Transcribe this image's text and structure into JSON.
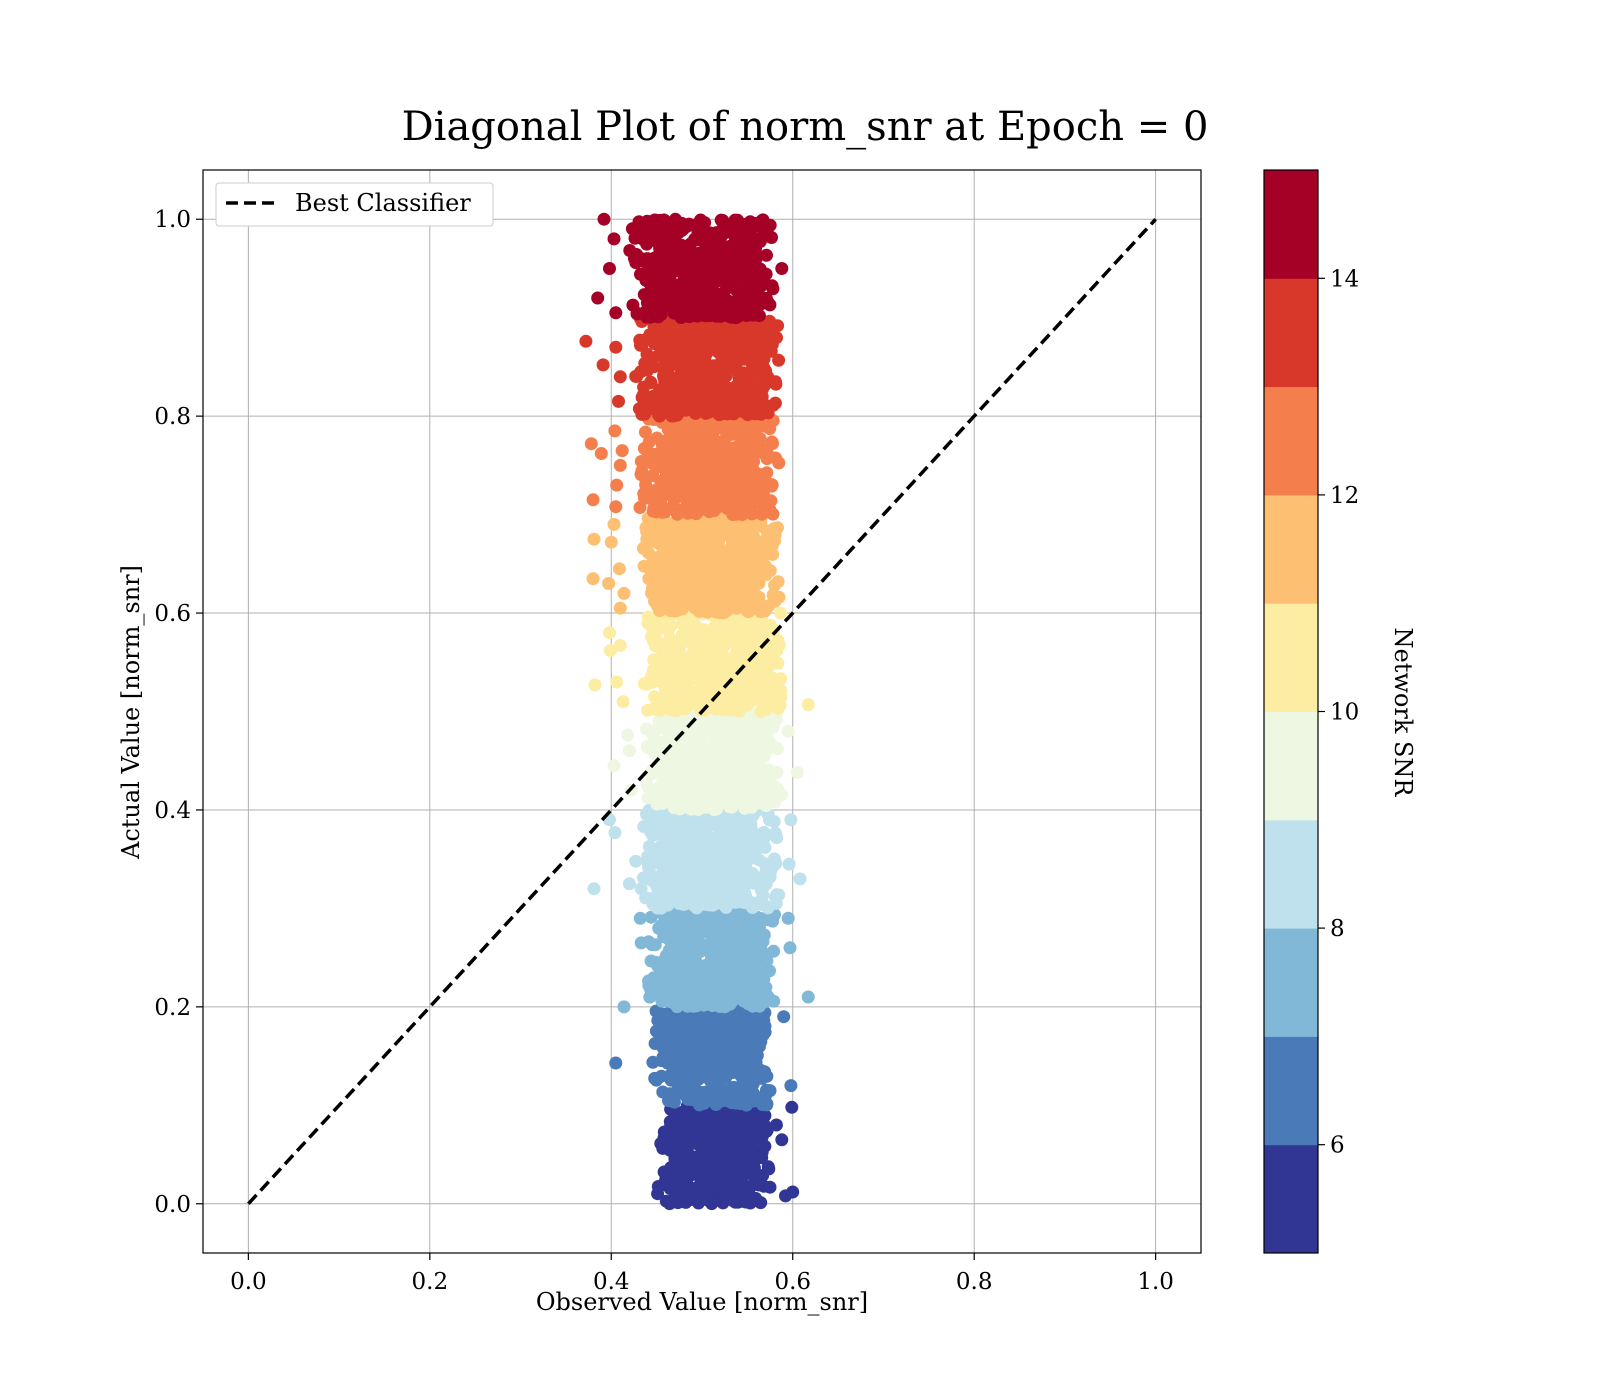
{
  "chart_data": {
    "type": "scatter",
    "title": "Diagonal Plot of norm_snr at Epoch = 0",
    "xlabel": "Observed Value [norm_snr]",
    "ylabel": "Actual Value [norm_snr]",
    "xlim": [
      -0.05,
      1.05
    ],
    "ylim": [
      -0.05,
      1.05
    ],
    "xticks": [
      "0.0",
      "0.2",
      "0.4",
      "0.6",
      "0.8",
      "1.0"
    ],
    "yticks": [
      "0.0",
      "0.2",
      "0.4",
      "0.6",
      "0.8",
      "1.0"
    ],
    "grid": true,
    "legend": {
      "placement": "top-left",
      "entries": [
        "Best Classifier"
      ]
    },
    "reference_line": {
      "name": "Best Classifier",
      "x": [
        0,
        1
      ],
      "y": [
        0,
        1
      ],
      "style": "dashed",
      "color": "#000000"
    },
    "colorbar": {
      "label": "Network SNR",
      "range": [
        5,
        15
      ],
      "ticks": [
        "6",
        "8",
        "10",
        "12",
        "14"
      ],
      "levels": [
        {
          "from": 5,
          "to": 6,
          "color": "#313695"
        },
        {
          "from": 6,
          "to": 7,
          "color": "#4a7ab7"
        },
        {
          "from": 7,
          "to": 8,
          "color": "#81b7d7"
        },
        {
          "from": 8,
          "to": 9,
          "color": "#bfe1ed"
        },
        {
          "from": 9,
          "to": 10,
          "color": "#eef7e2"
        },
        {
          "from": 10,
          "to": 11,
          "color": "#fdeda2"
        },
        {
          "from": 11,
          "to": 12,
          "color": "#fdbf71"
        },
        {
          "from": 12,
          "to": 13,
          "color": "#f57f4c"
        },
        {
          "from": 13,
          "to": 14,
          "color": "#d8382a"
        },
        {
          "from": 14,
          "to": 15,
          "color": "#a50026"
        }
      ]
    },
    "bands": [
      {
        "y_range": [
          0.0,
          0.1
        ],
        "x_range": [
          0.45,
          0.575
        ],
        "color": "#313695"
      },
      {
        "y_range": [
          0.1,
          0.2
        ],
        "x_range": [
          0.445,
          0.575
        ],
        "color": "#4a7ab7"
      },
      {
        "y_range": [
          0.2,
          0.3
        ],
        "x_range": [
          0.44,
          0.58
        ],
        "color": "#81b7d7"
      },
      {
        "y_range": [
          0.3,
          0.4
        ],
        "x_range": [
          0.435,
          0.585
        ],
        "color": "#bfe1ed"
      },
      {
        "y_range": [
          0.4,
          0.5
        ],
        "x_range": [
          0.435,
          0.59
        ],
        "color": "#eef7e2"
      },
      {
        "y_range": [
          0.5,
          0.6
        ],
        "x_range": [
          0.435,
          0.59
        ],
        "color": "#fdeda2"
      },
      {
        "y_range": [
          0.6,
          0.7
        ],
        "x_range": [
          0.435,
          0.585
        ],
        "color": "#fdbf71"
      },
      {
        "y_range": [
          0.7,
          0.8
        ],
        "x_range": [
          0.43,
          0.585
        ],
        "color": "#f57f4c"
      },
      {
        "y_range": [
          0.8,
          0.9
        ],
        "x_range": [
          0.425,
          0.585
        ],
        "color": "#d8382a"
      },
      {
        "y_range": [
          0.9,
          1.0
        ],
        "x_range": [
          0.42,
          0.58
        ],
        "color": "#a50026"
      }
    ],
    "outliers": [
      {
        "x": 0.392,
        "y": 1.0,
        "color": "#a50026"
      },
      {
        "x": 0.385,
        "y": 0.92,
        "color": "#a50026"
      },
      {
        "x": 0.398,
        "y": 0.95,
        "color": "#a50026"
      },
      {
        "x": 0.405,
        "y": 0.905,
        "color": "#a50026"
      },
      {
        "x": 0.588,
        "y": 0.95,
        "color": "#a50026"
      },
      {
        "x": 0.403,
        "y": 0.98,
        "color": "#a50026"
      },
      {
        "x": 0.372,
        "y": 0.876,
        "color": "#d8382a"
      },
      {
        "x": 0.391,
        "y": 0.852,
        "color": "#d8382a"
      },
      {
        "x": 0.405,
        "y": 0.87,
        "color": "#d8382a"
      },
      {
        "x": 0.41,
        "y": 0.84,
        "color": "#d8382a"
      },
      {
        "x": 0.408,
        "y": 0.815,
        "color": "#d8382a"
      },
      {
        "x": 0.378,
        "y": 0.772,
        "color": "#f57f4c"
      },
      {
        "x": 0.389,
        "y": 0.762,
        "color": "#f57f4c"
      },
      {
        "x": 0.38,
        "y": 0.715,
        "color": "#f57f4c"
      },
      {
        "x": 0.404,
        "y": 0.785,
        "color": "#f57f4c"
      },
      {
        "x": 0.406,
        "y": 0.73,
        "color": "#f57f4c"
      },
      {
        "x": 0.405,
        "y": 0.708,
        "color": "#f57f4c"
      },
      {
        "x": 0.41,
        "y": 0.75,
        "color": "#f57f4c"
      },
      {
        "x": 0.412,
        "y": 0.765,
        "color": "#f57f4c"
      },
      {
        "x": 0.381,
        "y": 0.675,
        "color": "#fdbf71"
      },
      {
        "x": 0.38,
        "y": 0.635,
        "color": "#fdbf71"
      },
      {
        "x": 0.4,
        "y": 0.672,
        "color": "#fdbf71"
      },
      {
        "x": 0.403,
        "y": 0.69,
        "color": "#fdbf71"
      },
      {
        "x": 0.409,
        "y": 0.645,
        "color": "#fdbf71"
      },
      {
        "x": 0.397,
        "y": 0.63,
        "color": "#fdbf71"
      },
      {
        "x": 0.414,
        "y": 0.62,
        "color": "#fdbf71"
      },
      {
        "x": 0.41,
        "y": 0.605,
        "color": "#fdbf71"
      },
      {
        "x": 0.382,
        "y": 0.527,
        "color": "#fdeda2"
      },
      {
        "x": 0.398,
        "y": 0.58,
        "color": "#fdeda2"
      },
      {
        "x": 0.399,
        "y": 0.562,
        "color": "#fdeda2"
      },
      {
        "x": 0.406,
        "y": 0.53,
        "color": "#fdeda2"
      },
      {
        "x": 0.41,
        "y": 0.567,
        "color": "#fdeda2"
      },
      {
        "x": 0.413,
        "y": 0.51,
        "color": "#fdeda2"
      },
      {
        "x": 0.617,
        "y": 0.507,
        "color": "#fdeda2"
      },
      {
        "x": 0.403,
        "y": 0.445,
        "color": "#eef7e2"
      },
      {
        "x": 0.418,
        "y": 0.476,
        "color": "#eef7e2"
      },
      {
        "x": 0.42,
        "y": 0.46,
        "color": "#eef7e2"
      },
      {
        "x": 0.605,
        "y": 0.438,
        "color": "#eef7e2"
      },
      {
        "x": 0.595,
        "y": 0.48,
        "color": "#eef7e2"
      },
      {
        "x": 0.422,
        "y": 0.42,
        "color": "#eef7e2"
      },
      {
        "x": 0.381,
        "y": 0.32,
        "color": "#bfe1ed"
      },
      {
        "x": 0.398,
        "y": 0.39,
        "color": "#bfe1ed"
      },
      {
        "x": 0.404,
        "y": 0.377,
        "color": "#bfe1ed"
      },
      {
        "x": 0.42,
        "y": 0.325,
        "color": "#bfe1ed"
      },
      {
        "x": 0.427,
        "y": 0.348,
        "color": "#bfe1ed"
      },
      {
        "x": 0.608,
        "y": 0.33,
        "color": "#bfe1ed"
      },
      {
        "x": 0.596,
        "y": 0.345,
        "color": "#bfe1ed"
      },
      {
        "x": 0.598,
        "y": 0.39,
        "color": "#bfe1ed"
      },
      {
        "x": 0.433,
        "y": 0.32,
        "color": "#bfe1ed"
      },
      {
        "x": 0.414,
        "y": 0.2,
        "color": "#81b7d7"
      },
      {
        "x": 0.617,
        "y": 0.21,
        "color": "#81b7d7"
      },
      {
        "x": 0.597,
        "y": 0.26,
        "color": "#81b7d7"
      },
      {
        "x": 0.595,
        "y": 0.29,
        "color": "#81b7d7"
      },
      {
        "x": 0.432,
        "y": 0.29,
        "color": "#81b7d7"
      },
      {
        "x": 0.433,
        "y": 0.265,
        "color": "#81b7d7"
      },
      {
        "x": 0.405,
        "y": 0.143,
        "color": "#4a7ab7"
      },
      {
        "x": 0.598,
        "y": 0.12,
        "color": "#4a7ab7"
      },
      {
        "x": 0.59,
        "y": 0.19,
        "color": "#4a7ab7"
      },
      {
        "x": 0.599,
        "y": 0.098,
        "color": "#313695"
      },
      {
        "x": 0.6,
        "y": 0.012,
        "color": "#313695"
      },
      {
        "x": 0.592,
        "y": 0.008,
        "color": "#313695"
      },
      {
        "x": 0.588,
        "y": 0.065,
        "color": "#313695"
      },
      {
        "x": 0.582,
        "y": 0.08,
        "color": "#313695"
      }
    ]
  }
}
